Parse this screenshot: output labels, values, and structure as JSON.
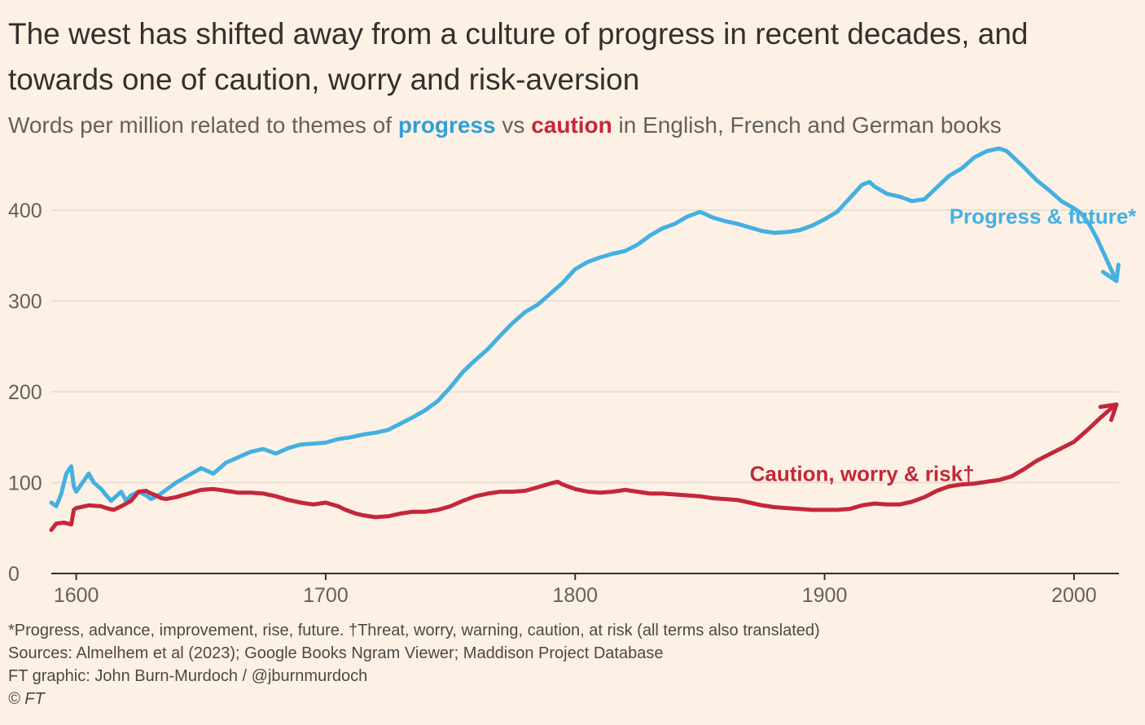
{
  "title": "The west has shifted away from a culture of progress in recent decades, and towards one of caution, worry and risk-aversion",
  "subtitle": {
    "prefix": "Words per million related to themes of ",
    "progress_word": "progress",
    "vs": " vs ",
    "caution_word": "caution",
    "suffix": " in English, French and German books"
  },
  "footer": {
    "note": "*Progress, advance, improvement, rise, future. †Threat, worry, warning, caution, at risk (all terms also translated)",
    "sources": "Sources: Almelhem et al (2023); Google Books Ngram Viewer; Maddison Project Database",
    "credit": "FT graphic: John Burn-Murdoch / @jburnmurdoch",
    "copyright": "© FT"
  },
  "colors": {
    "background": "#fdf1e5",
    "progress": "#44b0e2",
    "caution": "#c4273a",
    "grid": "#e6dacf",
    "axis": "#33302e",
    "tick_text": "#66605c"
  },
  "chart_data": {
    "type": "line",
    "title": "Words per million related to themes of progress vs caution in English, French and German books",
    "xlabel": "",
    "ylabel": "Words per million",
    "xlim": [
      1590,
      2018
    ],
    "ylim": [
      0,
      470
    ],
    "x_ticks": [
      1600,
      1700,
      1800,
      1900,
      2000
    ],
    "y_ticks": [
      0,
      100,
      200,
      300,
      400
    ],
    "grid": "horizontal",
    "series": [
      {
        "name": "Progress & future*",
        "color": "#44b0e2",
        "arrow_end": true,
        "points": [
          [
            1590,
            78
          ],
          [
            1592,
            74
          ],
          [
            1594,
            88
          ],
          [
            1596,
            110
          ],
          [
            1598,
            118
          ],
          [
            1599,
            96
          ],
          [
            1600,
            90
          ],
          [
            1603,
            102
          ],
          [
            1605,
            110
          ],
          [
            1607,
            100
          ],
          [
            1610,
            93
          ],
          [
            1612,
            86
          ],
          [
            1614,
            80
          ],
          [
            1616,
            85
          ],
          [
            1618,
            90
          ],
          [
            1620,
            80
          ],
          [
            1622,
            86
          ],
          [
            1625,
            90
          ],
          [
            1628,
            86
          ],
          [
            1630,
            82
          ],
          [
            1633,
            86
          ],
          [
            1636,
            92
          ],
          [
            1640,
            100
          ],
          [
            1645,
            108
          ],
          [
            1650,
            116
          ],
          [
            1655,
            110
          ],
          [
            1660,
            122
          ],
          [
            1665,
            128
          ],
          [
            1670,
            134
          ],
          [
            1675,
            137
          ],
          [
            1680,
            132
          ],
          [
            1685,
            138
          ],
          [
            1690,
            142
          ],
          [
            1695,
            143
          ],
          [
            1700,
            144
          ],
          [
            1705,
            148
          ],
          [
            1710,
            150
          ],
          [
            1715,
            153
          ],
          [
            1720,
            155
          ],
          [
            1725,
            158
          ],
          [
            1730,
            165
          ],
          [
            1735,
            172
          ],
          [
            1740,
            180
          ],
          [
            1745,
            190
          ],
          [
            1750,
            205
          ],
          [
            1755,
            222
          ],
          [
            1760,
            235
          ],
          [
            1765,
            247
          ],
          [
            1770,
            262
          ],
          [
            1775,
            276
          ],
          [
            1780,
            288
          ],
          [
            1785,
            296
          ],
          [
            1790,
            308
          ],
          [
            1795,
            320
          ],
          [
            1800,
            335
          ],
          [
            1805,
            343
          ],
          [
            1810,
            348
          ],
          [
            1815,
            352
          ],
          [
            1820,
            355
          ],
          [
            1825,
            362
          ],
          [
            1830,
            372
          ],
          [
            1835,
            380
          ],
          [
            1840,
            385
          ],
          [
            1845,
            393
          ],
          [
            1850,
            398
          ],
          [
            1852,
            396
          ],
          [
            1855,
            392
          ],
          [
            1860,
            388
          ],
          [
            1865,
            385
          ],
          [
            1870,
            381
          ],
          [
            1875,
            377
          ],
          [
            1880,
            375
          ],
          [
            1885,
            376
          ],
          [
            1890,
            378
          ],
          [
            1895,
            383
          ],
          [
            1900,
            390
          ],
          [
            1905,
            398
          ],
          [
            1910,
            413
          ],
          [
            1915,
            428
          ],
          [
            1918,
            431
          ],
          [
            1920,
            426
          ],
          [
            1925,
            418
          ],
          [
            1930,
            415
          ],
          [
            1935,
            410
          ],
          [
            1940,
            412
          ],
          [
            1945,
            425
          ],
          [
            1950,
            438
          ],
          [
            1955,
            446
          ],
          [
            1960,
            458
          ],
          [
            1965,
            465
          ],
          [
            1970,
            468
          ],
          [
            1973,
            465
          ],
          [
            1975,
            460
          ],
          [
            1980,
            447
          ],
          [
            1985,
            433
          ],
          [
            1990,
            422
          ],
          [
            1995,
            410
          ],
          [
            2000,
            402
          ],
          [
            2003,
            396
          ],
          [
            2006,
            385
          ],
          [
            2009,
            370
          ],
          [
            2012,
            352
          ],
          [
            2015,
            334
          ],
          [
            2017,
            322
          ]
        ]
      },
      {
        "name": "Caution, worry & risk†",
        "color": "#c4273a",
        "arrow_end": true,
        "points": [
          [
            1590,
            48
          ],
          [
            1592,
            55
          ],
          [
            1595,
            56
          ],
          [
            1598,
            54
          ],
          [
            1599,
            70
          ],
          [
            1600,
            72
          ],
          [
            1605,
            75
          ],
          [
            1610,
            74
          ],
          [
            1612,
            72
          ],
          [
            1615,
            70
          ],
          [
            1618,
            74
          ],
          [
            1622,
            80
          ],
          [
            1625,
            90
          ],
          [
            1628,
            91
          ],
          [
            1630,
            88
          ],
          [
            1632,
            86
          ],
          [
            1634,
            83
          ],
          [
            1636,
            82
          ],
          [
            1640,
            84
          ],
          [
            1645,
            88
          ],
          [
            1650,
            92
          ],
          [
            1655,
            93
          ],
          [
            1660,
            91
          ],
          [
            1665,
            89
          ],
          [
            1670,
            89
          ],
          [
            1675,
            88
          ],
          [
            1680,
            85
          ],
          [
            1685,
            81
          ],
          [
            1690,
            78
          ],
          [
            1695,
            76
          ],
          [
            1700,
            78
          ],
          [
            1705,
            74
          ],
          [
            1708,
            70
          ],
          [
            1712,
            66
          ],
          [
            1715,
            64
          ],
          [
            1720,
            62
          ],
          [
            1725,
            63
          ],
          [
            1730,
            66
          ],
          [
            1735,
            68
          ],
          [
            1740,
            68
          ],
          [
            1745,
            70
          ],
          [
            1750,
            74
          ],
          [
            1755,
            80
          ],
          [
            1760,
            85
          ],
          [
            1765,
            88
          ],
          [
            1770,
            90
          ],
          [
            1775,
            90
          ],
          [
            1780,
            91
          ],
          [
            1785,
            95
          ],
          [
            1790,
            99
          ],
          [
            1793,
            101
          ],
          [
            1795,
            98
          ],
          [
            1800,
            93
          ],
          [
            1805,
            90
          ],
          [
            1810,
            89
          ],
          [
            1815,
            90
          ],
          [
            1820,
            92
          ],
          [
            1825,
            90
          ],
          [
            1830,
            88
          ],
          [
            1835,
            88
          ],
          [
            1840,
            87
          ],
          [
            1845,
            86
          ],
          [
            1850,
            85
          ],
          [
            1855,
            83
          ],
          [
            1860,
            82
          ],
          [
            1865,
            81
          ],
          [
            1870,
            78
          ],
          [
            1875,
            75
          ],
          [
            1880,
            73
          ],
          [
            1885,
            72
          ],
          [
            1890,
            71
          ],
          [
            1895,
            70
          ],
          [
            1900,
            70
          ],
          [
            1905,
            70
          ],
          [
            1910,
            71
          ],
          [
            1915,
            75
          ],
          [
            1920,
            77
          ],
          [
            1925,
            76
          ],
          [
            1930,
            76
          ],
          [
            1935,
            79
          ],
          [
            1940,
            84
          ],
          [
            1945,
            91
          ],
          [
            1950,
            96
          ],
          [
            1955,
            98
          ],
          [
            1960,
            99
          ],
          [
            1965,
            101
          ],
          [
            1970,
            103
          ],
          [
            1975,
            107
          ],
          [
            1980,
            115
          ],
          [
            1985,
            124
          ],
          [
            1990,
            131
          ],
          [
            1995,
            138
          ],
          [
            2000,
            145
          ],
          [
            2005,
            157
          ],
          [
            2010,
            170
          ],
          [
            2015,
            182
          ],
          [
            2017,
            186
          ]
        ]
      }
    ],
    "annotations": [
      {
        "text": "Progress & future*",
        "series": 0,
        "x": 1950,
        "y": 385
      },
      {
        "text": "Caution, worry & risk†",
        "series": 1,
        "x": 1870,
        "y": 102
      }
    ]
  }
}
